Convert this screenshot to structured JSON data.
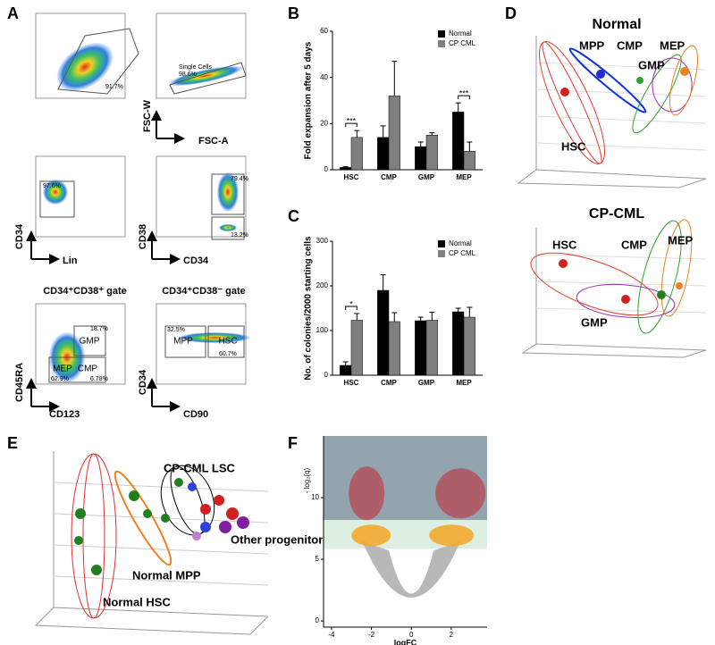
{
  "panel_labels": [
    "A",
    "B",
    "C",
    "D",
    "E",
    "F"
  ],
  "panel_a": {
    "axis_labels": [
      "FSC-W",
      "FSC-A",
      "CD34",
      "Lin",
      "CD38",
      "CD34",
      "CD45RA",
      "CD123",
      "CD34",
      "CD90"
    ],
    "gate_titles": [
      "CD34⁺CD38⁺ gate",
      "CD34⁺CD38⁻ gate"
    ],
    "gate_labels": [
      "GMP",
      "MEP",
      "CMP",
      "MPP",
      "HSC",
      "Single Cells"
    ],
    "percentages": [
      "91.7%",
      "98.6%",
      "97.6%",
      "79.4%",
      "13.2%",
      "18.7%",
      "62.9%",
      "6.78%",
      "32.5%",
      "60.7%"
    ]
  },
  "panel_d": {
    "titles": [
      "Normal",
      "CP-CML"
    ],
    "normal_labels": [
      "MPP",
      "CMP",
      "MEP",
      "GMP",
      "HSC"
    ],
    "cml_labels": [
      "HSC",
      "CMP",
      "MEP",
      "GMP"
    ]
  },
  "panel_e": {
    "labels": [
      "CP-CML LSC",
      "Other progenitors",
      "Normal MPP",
      "Normal HSC"
    ]
  },
  "chart_data": [
    {
      "type": "bar",
      "ylabel": "Fold expansion after 5 days",
      "categories": [
        "HSC",
        "CMP",
        "GMP",
        "MEP"
      ],
      "series": [
        {
          "name": "Normal",
          "color": "#000000",
          "values": [
            1,
            14,
            10,
            25
          ],
          "errors": [
            0.3,
            5,
            2,
            4
          ]
        },
        {
          "name": "CP CML",
          "color": "#7f7f7f",
          "values": [
            14,
            32,
            15,
            8
          ],
          "errors": [
            3,
            15,
            1,
            4
          ]
        }
      ],
      "annotations": [
        "***",
        "***"
      ],
      "ylim": [
        0,
        60
      ],
      "yticks": [
        0,
        20,
        40,
        60
      ],
      "legend": "top-right"
    },
    {
      "type": "bar",
      "ylabel": "No. of colonies/2000 starting cells",
      "categories": [
        "HSC",
        "CMP",
        "GMP",
        "MEP"
      ],
      "series": [
        {
          "name": "Normal",
          "color": "#000000",
          "values": [
            22,
            190,
            122,
            142
          ],
          "errors": [
            8,
            35,
            8,
            8
          ]
        },
        {
          "name": "CP CML",
          "color": "#7f7f7f",
          "values": [
            123,
            120,
            123,
            130
          ],
          "errors": [
            15,
            20,
            18,
            22
          ]
        }
      ],
      "annotations": [
        "*"
      ],
      "ylim": [
        0,
        300
      ],
      "yticks": [
        0,
        100,
        200,
        300
      ],
      "legend": "top-right"
    },
    {
      "type": "scatter",
      "xlabel": "logFC",
      "ylabel": "- log₂(q)",
      "xlim": [
        -4.4,
        3.8
      ],
      "xticks": [
        -4,
        -2,
        0,
        2
      ],
      "ylim": [
        -0.5,
        15
      ],
      "yticks": [
        0,
        5,
        10
      ]
    }
  ]
}
